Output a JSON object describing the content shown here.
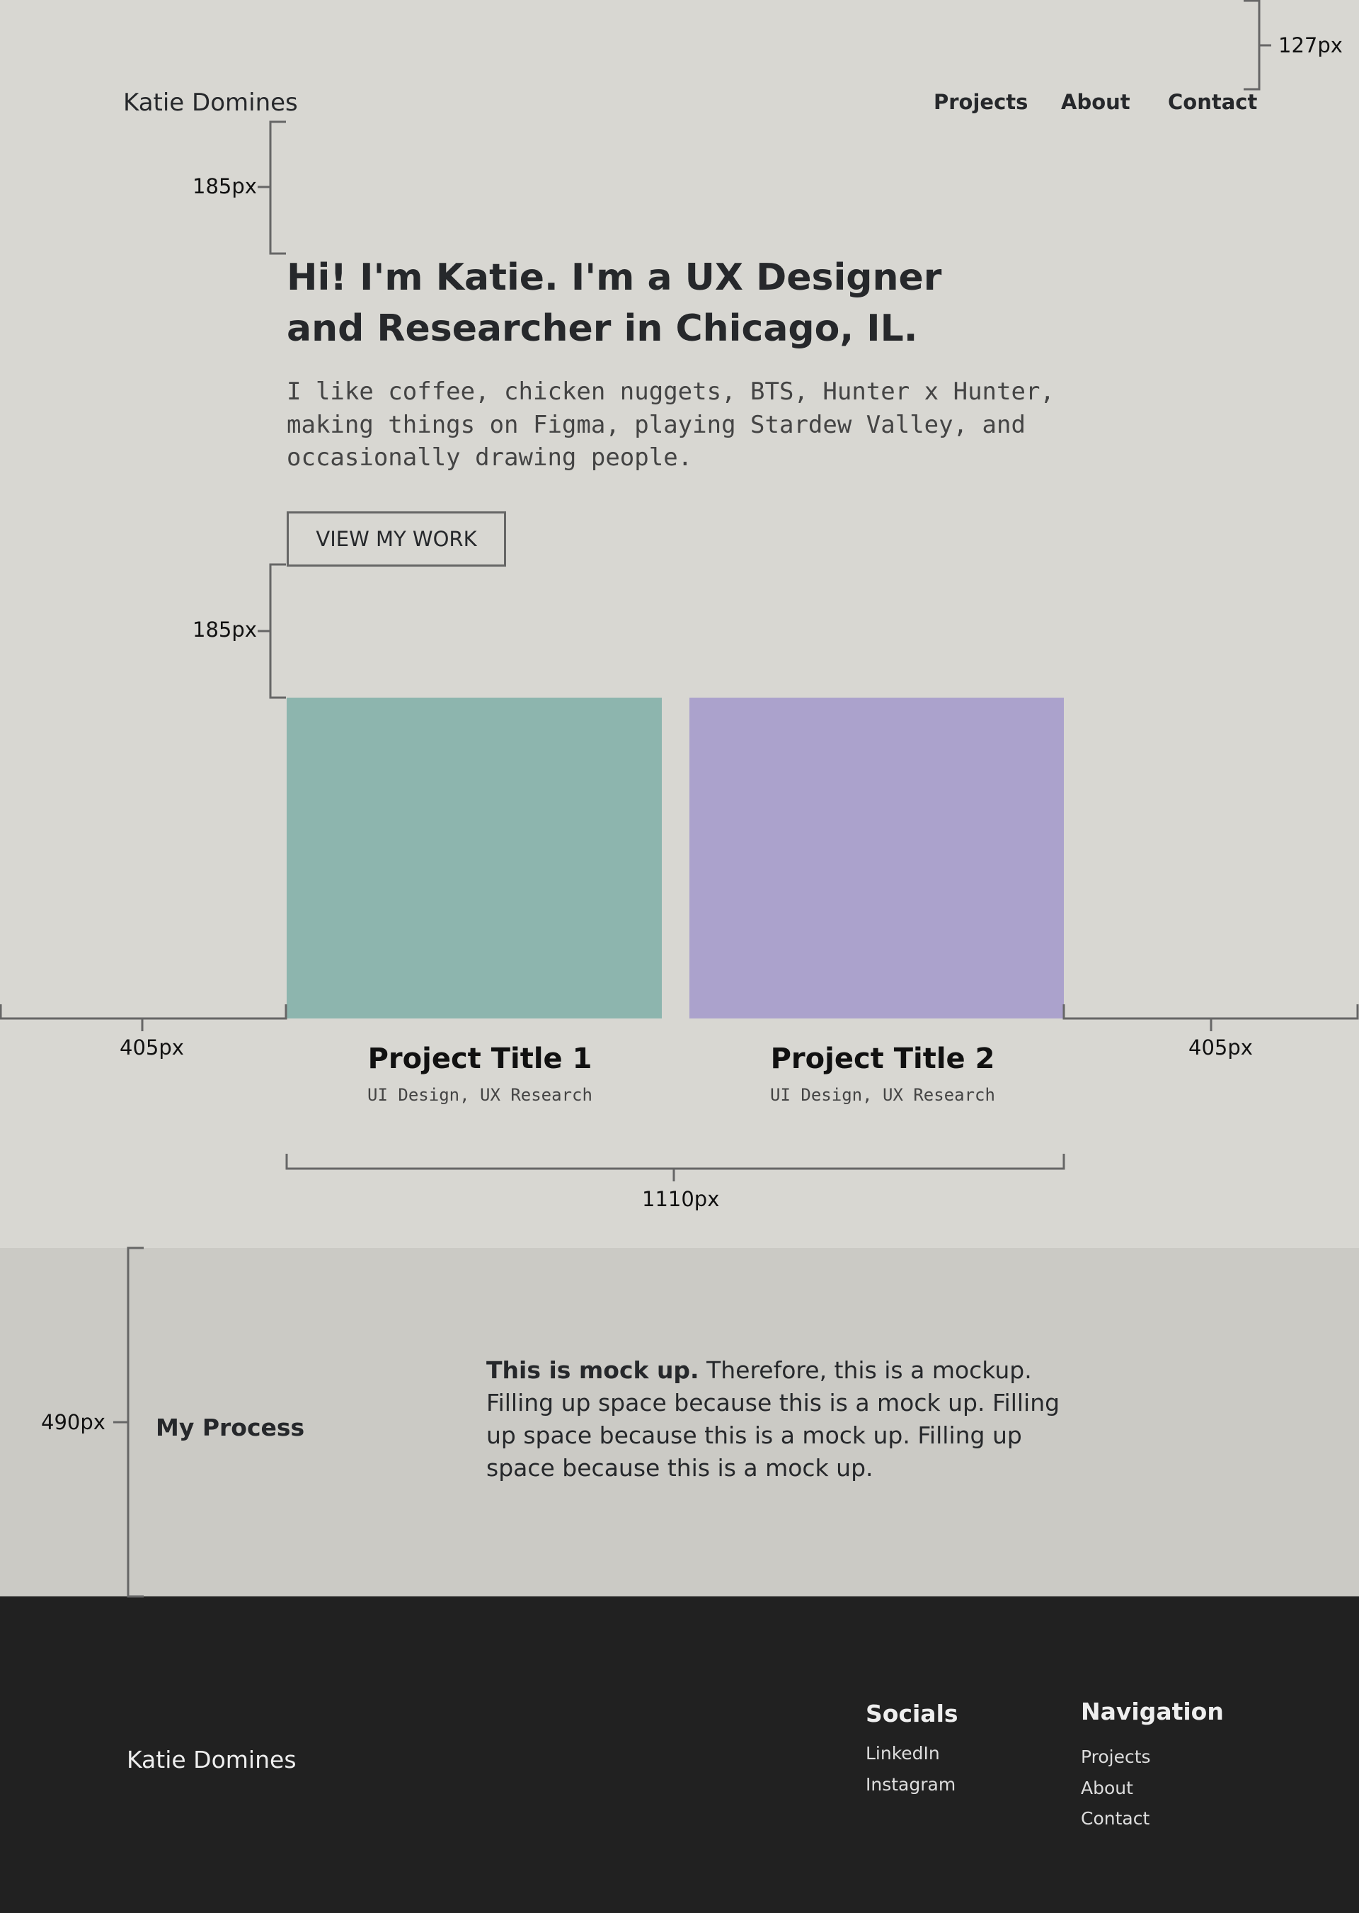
{
  "header": {
    "name": "Katie Domines",
    "nav": [
      "Projects",
      "About",
      "Contact"
    ]
  },
  "hero": {
    "heading": [
      "Hi! I'm Katie. I'm a UX Designer",
      "and Researcher in Chicago, IL."
    ],
    "intro": [
      "I like coffee, chicken nuggets, BTS, Hunter x Hunter,",
      "making things on Figma, playing Stardew Valley, and",
      "occasionally drawing people."
    ],
    "button": "VIEW MY WORK"
  },
  "projects": [
    {
      "title": "Project Title 1",
      "tags": "UI Design, UX Research",
      "color": "#8db5ae"
    },
    {
      "title": "Project Title 2",
      "tags": "UI Design, UX Research",
      "color": "#aba2cc"
    }
  ],
  "process": {
    "title": "My Process",
    "bold": "This is mock up.",
    "text": "Therefore, this is a mockup. Filling up space because this is a mock up. Filling up space because this is a mock up. Filling up space because this is a mock up."
  },
  "footer": {
    "name": "Katie Domines",
    "socials": {
      "title": "Socials",
      "links": [
        "LinkedIn",
        "Instagram"
      ]
    },
    "navigation": {
      "title": "Navigation",
      "links": [
        "Projects",
        "About",
        "Contact"
      ]
    }
  },
  "annotations": [
    "127px",
    "185px",
    "185px",
    "405px",
    "405px",
    "1110px",
    "490px"
  ]
}
